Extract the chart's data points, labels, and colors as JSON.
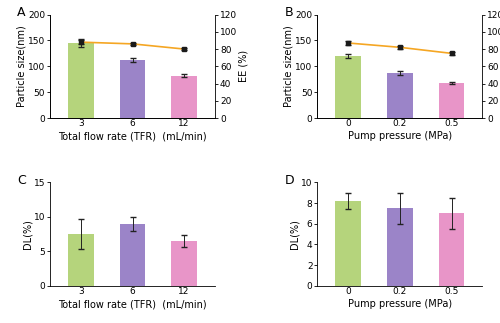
{
  "A": {
    "categories": [
      "3",
      "6",
      "12"
    ],
    "xlabel": "Total flow rate (TFR)  (mL/min)",
    "bar_values": [
      145,
      113,
      82
    ],
    "bar_errors": [
      8,
      4,
      3
    ],
    "bar_colors": [
      "#b5d47c",
      "#9b84c8",
      "#e895c8"
    ],
    "ee_values": [
      88,
      86,
      80
    ],
    "ee_errors": [
      2,
      1,
      1
    ],
    "ylim_left": [
      0,
      200
    ],
    "ylim_right": [
      0,
      120
    ],
    "ylabel_left": "Particle size(nm)",
    "ylabel_right": "EE (%)",
    "label": "A"
  },
  "B": {
    "categories": [
      "0",
      "0.2",
      "0.5"
    ],
    "xlabel": "Pump pressure (MPa)",
    "bar_values": [
      120,
      87,
      68
    ],
    "bar_errors": [
      3,
      3,
      2
    ],
    "bar_colors": [
      "#b5d47c",
      "#9b84c8",
      "#e895c8"
    ],
    "ee_values": [
      87,
      82,
      75
    ],
    "ee_errors": [
      2,
      2,
      2
    ],
    "ylim_left": [
      0,
      200
    ],
    "ylim_right": [
      0,
      120
    ],
    "ylabel_left": "Particle size(nm)",
    "ylabel_right": "EE (%)",
    "label": "B"
  },
  "C": {
    "categories": [
      "3",
      "6",
      "12"
    ],
    "xlabel": "Total flow rate (TFR)  (mL/min)",
    "bar_values": [
      7.5,
      9.0,
      6.5
    ],
    "bar_errors": [
      2.2,
      1.0,
      0.8
    ],
    "bar_colors": [
      "#b5d47c",
      "#9b84c8",
      "#e895c8"
    ],
    "ylim": [
      0,
      15
    ],
    "yticks": [
      0,
      5,
      10,
      15
    ],
    "ylabel": "DL(%)",
    "label": "C"
  },
  "D": {
    "categories": [
      "0",
      "0.2",
      "0.5"
    ],
    "xlabel": "Pump pressure (MPa)",
    "bar_values": [
      8.2,
      7.5,
      7.0
    ],
    "bar_errors": [
      0.8,
      1.5,
      1.5
    ],
    "bar_colors": [
      "#b5d47c",
      "#9b84c8",
      "#e895c8"
    ],
    "ylim": [
      0,
      10
    ],
    "yticks": [
      0,
      2,
      4,
      6,
      8,
      10
    ],
    "ylabel": "DL(%)",
    "label": "D"
  },
  "line_color": "#f5a623",
  "line_marker": "s",
  "line_marker_color": "#1a1a1a",
  "figure_bg": "#ffffff",
  "label_fontsize": 7,
  "tick_fontsize": 6.5,
  "bar_width": 0.5,
  "capsize": 2
}
